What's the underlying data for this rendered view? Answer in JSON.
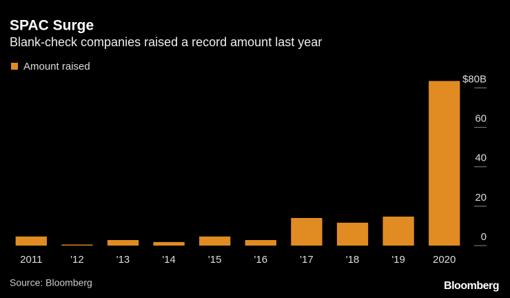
{
  "chart_data": {
    "type": "bar",
    "title": "SPAC Surge",
    "subtitle": "Blank-check companies raised a record amount last year",
    "categories": [
      "2011",
      "'12",
      "'13",
      "'14",
      "'15",
      "'16",
      "'17",
      "'18",
      "'19",
      "2020"
    ],
    "series": [
      {
        "name": "Amount raised",
        "color": "#e08c22",
        "values": [
          4.6,
          0.5,
          2.8,
          1.8,
          4.6,
          2.8,
          14,
          11.6,
          14.7,
          83.5
        ]
      }
    ],
    "ylim": [
      0,
      84
    ],
    "yticks": [
      0,
      20,
      40,
      60,
      {
        "value": 80,
        "label": "$80B"
      }
    ],
    "source": "Source: Bloomberg",
    "logo": "Bloomberg"
  }
}
